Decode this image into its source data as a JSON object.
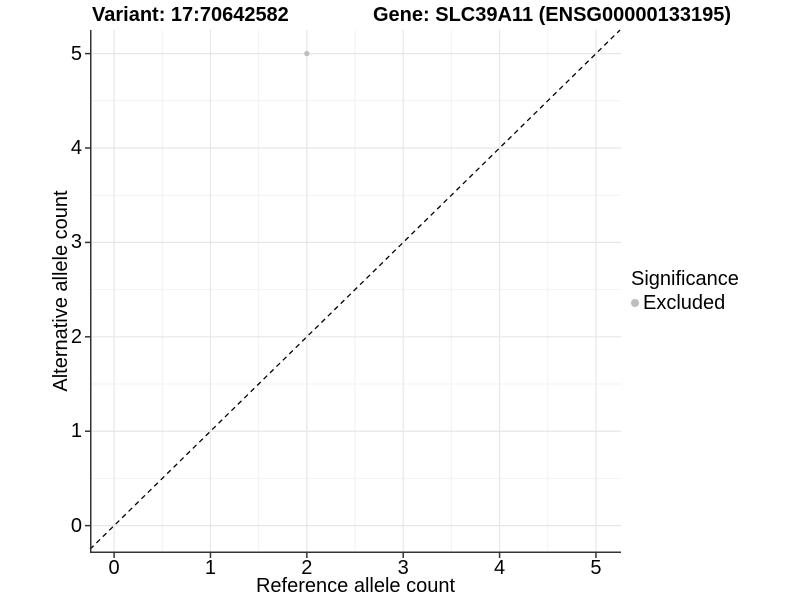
{
  "page": {
    "titles": {
      "left": "Variant: 17:70642582",
      "right": "Gene: SLC39A11 (ENSG00000133195)"
    }
  },
  "chart_data": {
    "type": "scatter",
    "xlabel": "Reference allele count",
    "ylabel": "Alternative allele count",
    "x_ticks": [
      0,
      1,
      2,
      3,
      4,
      5
    ],
    "y_ticks": [
      0,
      1,
      2,
      3,
      4,
      5
    ],
    "xlim": [
      -0.25,
      5.26
    ],
    "ylim": [
      -0.29,
      5.25
    ],
    "grid": "major+minor",
    "identity_line": {
      "style": "dashed",
      "equation": "y = x"
    },
    "series": [
      {
        "name": "Excluded",
        "color": "#bebebe",
        "points": [
          {
            "x": 2,
            "y": 5
          }
        ]
      }
    ],
    "legend": {
      "title": "Significance",
      "position": "right",
      "entries": [
        {
          "label": "Excluded",
          "color": "#bebebe"
        }
      ]
    }
  },
  "colors": {
    "background": "#ffffff",
    "axis_line": "#333333",
    "grid_major": "#e7e7e7",
    "grid_minor": "#f2f2f2",
    "tick_mark": "#333333",
    "identity_line": "#000000",
    "text": "#000000"
  }
}
